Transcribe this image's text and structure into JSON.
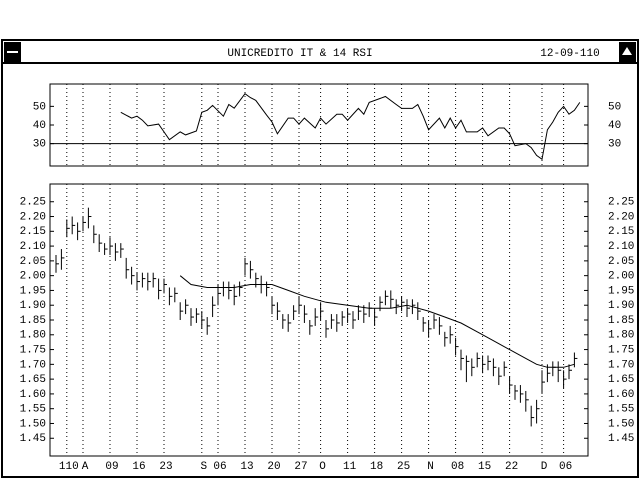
{
  "window": {
    "title": "UNICREDITO IT & 14 RSI",
    "date": "12-09-110"
  },
  "chart_data": [
    {
      "type": "line",
      "x": [
        12,
        14,
        15,
        16,
        17,
        19,
        20,
        21,
        23,
        24,
        26,
        27,
        28,
        29,
        31,
        32,
        33,
        35,
        36,
        37,
        39,
        40,
        41,
        43,
        44,
        45,
        46,
        48,
        49,
        50,
        52,
        53,
        54,
        56,
        57,
        58,
        60,
        61,
        63,
        64,
        66,
        67,
        68,
        69,
        71,
        72,
        73,
        74,
        75,
        76,
        78,
        79,
        80,
        82,
        83,
        84,
        85,
        87,
        88,
        89,
        90,
        91,
        92,
        93,
        94,
        95,
        96,
        97
      ],
      "values": [
        46.8,
        43.7,
        44.7,
        42.6,
        39.5,
        40.5,
        36.3,
        32.1,
        36.3,
        34.7,
        36.8,
        46.8,
        47.9,
        50.5,
        44.7,
        51,
        49,
        56.8,
        54.7,
        53.2,
        45.3,
        41.6,
        35.3,
        43.7,
        43.7,
        40.5,
        43.7,
        38.4,
        43.7,
        40.5,
        45.8,
        45.8,
        42.6,
        48.9,
        45.8,
        52.1,
        54.2,
        55.3,
        51,
        48.9,
        48.9,
        51,
        44.7,
        37.4,
        43.7,
        38.4,
        43.7,
        38.4,
        42.6,
        36.3,
        36.3,
        38.4,
        34.2,
        38.4,
        38.4,
        35.3,
        28.9,
        30,
        27.9,
        23.7,
        21.6,
        37.4,
        41.6,
        46.8,
        50,
        45.8,
        47.9,
        52.1
      ],
      "ylim": [
        18,
        62
      ],
      "yticks": [
        30,
        40,
        50
      ],
      "reference_line": 30,
      "color": "#000000"
    },
    {
      "type": "ohlc",
      "categories": [
        null,
        null,
        "110",
        null,
        null,
        "A",
        null,
        null,
        null,
        null,
        "09",
        null,
        null,
        null,
        null,
        "16",
        null,
        null,
        null,
        null,
        "23",
        null,
        null,
        null,
        null,
        null,
        null,
        "S",
        null,
        null,
        "06",
        null,
        null,
        null,
        null,
        "13",
        null,
        null,
        null,
        null,
        "20",
        null,
        null,
        null,
        null,
        "27",
        null,
        null,
        null,
        "O",
        null,
        null,
        null,
        null,
        "11",
        null,
        null,
        null,
        null,
        "18",
        null,
        null,
        null,
        null,
        "25",
        null,
        null,
        null,
        null,
        "N",
        null,
        null,
        null,
        null,
        "08",
        null,
        null,
        null,
        null,
        "15",
        null,
        null,
        null,
        null,
        "22",
        null,
        null,
        null,
        null,
        null,
        "D",
        null,
        null,
        null,
        "06",
        null,
        null
      ],
      "high": [
        2.07,
        2.09,
        2.19,
        2.2,
        2.18,
        2.2,
        2.23,
        2.17,
        2.14,
        2.11,
        2.13,
        2.11,
        2.11,
        2.06,
        2.03,
        2.01,
        2.01,
        2.01,
        2.01,
        1.99,
        1.99,
        1.96,
        1.96,
        1.91,
        1.92,
        1.89,
        1.89,
        1.88,
        1.86,
        1.93,
        1.97,
        1.98,
        1.98,
        1.97,
        1.98,
        2.06,
        2.05,
        2.01,
        2.0,
        1.98,
        1.93,
        1.91,
        1.87,
        1.87,
        1.9,
        1.93,
        1.9,
        1.85,
        1.89,
        1.91,
        1.85,
        1.87,
        1.87,
        1.88,
        1.89,
        1.88,
        1.9,
        1.9,
        1.91,
        1.89,
        1.93,
        1.95,
        1.95,
        1.92,
        1.93,
        1.92,
        1.92,
        1.91,
        1.86,
        1.85,
        1.87,
        1.86,
        1.81,
        1.83,
        1.79,
        1.75,
        1.73,
        1.72,
        1.74,
        1.73,
        1.73,
        1.72,
        1.69,
        1.71,
        1.66,
        1.63,
        1.63,
        1.61,
        1.56,
        1.58,
        1.68,
        1.7,
        1.71,
        1.71,
        1.68,
        1.7,
        1.74
      ],
      "low": [
        2.01,
        2.02,
        2.13,
        2.14,
        2.12,
        2.15,
        2.16,
        2.11,
        2.08,
        2.07,
        2.07,
        2.05,
        2.06,
        1.99,
        1.97,
        1.95,
        1.96,
        1.95,
        1.96,
        1.92,
        1.94,
        1.9,
        1.91,
        1.85,
        1.87,
        1.83,
        1.84,
        1.82,
        1.8,
        1.86,
        1.9,
        1.93,
        1.92,
        1.9,
        1.93,
        2.0,
        1.99,
        1.96,
        1.94,
        1.93,
        1.87,
        1.85,
        1.82,
        1.81,
        1.85,
        1.87,
        1.84,
        1.8,
        1.83,
        1.85,
        1.79,
        1.82,
        1.81,
        1.83,
        1.84,
        1.82,
        1.85,
        1.84,
        1.86,
        1.83,
        1.88,
        1.9,
        1.89,
        1.87,
        1.88,
        1.86,
        1.87,
        1.85,
        1.81,
        1.79,
        1.82,
        1.8,
        1.76,
        1.77,
        1.73,
        1.68,
        1.64,
        1.66,
        1.69,
        1.67,
        1.68,
        1.66,
        1.63,
        1.66,
        1.6,
        1.58,
        1.57,
        1.54,
        1.49,
        1.5,
        1.6,
        1.64,
        1.66,
        1.64,
        1.62,
        1.65,
        1.69
      ],
      "close": [
        2.04,
        2.06,
        2.16,
        2.17,
        2.15,
        2.18,
        2.2,
        2.14,
        2.11,
        2.09,
        2.1,
        2.08,
        2.09,
        2.02,
        2.0,
        1.98,
        1.99,
        1.98,
        1.99,
        1.95,
        1.97,
        1.93,
        1.94,
        1.88,
        1.9,
        1.86,
        1.87,
        1.85,
        1.83,
        1.9,
        1.94,
        1.96,
        1.95,
        1.93,
        1.96,
        2.04,
        2.02,
        1.99,
        1.97,
        1.96,
        1.9,
        1.88,
        1.85,
        1.84,
        1.88,
        1.9,
        1.87,
        1.83,
        1.86,
        1.88,
        1.82,
        1.85,
        1.84,
        1.86,
        1.87,
        1.85,
        1.88,
        1.87,
        1.89,
        1.86,
        1.91,
        1.93,
        1.92,
        1.9,
        1.91,
        1.89,
        1.9,
        1.88,
        1.84,
        1.82,
        1.85,
        1.83,
        1.79,
        1.8,
        1.76,
        1.72,
        1.71,
        1.69,
        1.72,
        1.7,
        1.71,
        1.69,
        1.66,
        1.69,
        1.63,
        1.61,
        1.6,
        1.58,
        1.52,
        1.55,
        1.64,
        1.67,
        1.69,
        1.68,
        1.65,
        1.68,
        1.72
      ],
      "average": {
        "x": [
          23,
          25,
          28,
          33,
          36,
          40,
          43,
          46,
          50,
          54,
          58,
          62,
          65,
          69,
          72,
          75,
          78,
          81,
          84,
          87,
          89,
          91,
          94,
          96
        ],
        "values": [
          2.0,
          1.97,
          1.96,
          1.96,
          1.97,
          1.97,
          1.95,
          1.93,
          1.91,
          1.9,
          1.89,
          1.89,
          1.9,
          1.88,
          1.86,
          1.84,
          1.81,
          1.78,
          1.75,
          1.72,
          1.7,
          1.69,
          1.69,
          1.7
        ]
      },
      "color": "#000000",
      "ylim": [
        1.39,
        2.31
      ],
      "yticks": [
        1.45,
        {
          "value": 1.5,
          "label": "1.50"
        },
        1.55,
        {
          "value": 1.6,
          "label": "1.60"
        },
        1.65,
        {
          "value": 1.7,
          "label": "1.70"
        },
        1.75,
        {
          "value": 1.8,
          "label": "1.80"
        },
        1.85,
        {
          "value": 1.9,
          "label": "1.90"
        },
        1.95,
        {
          "value": 2,
          "label": "2.00"
        },
        2.05,
        {
          "value": 2.1,
          "label": "2.10"
        },
        2.15,
        {
          "value": 2.2,
          "label": "2.20"
        },
        2.25
      ]
    }
  ]
}
